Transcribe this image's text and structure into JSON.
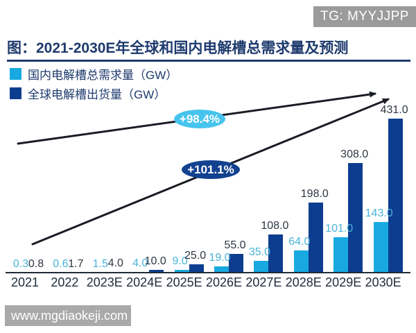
{
  "badges": {
    "tg": "TG: MYYJJPP",
    "watermark": "www.mgdiaokeji.com"
  },
  "colors": {
    "title_navy": "#1e3a6d",
    "domestic_cyan": "#18a9e0",
    "global_navy": "#0d3d8f",
    "domestic_label": "#4ab3d8",
    "global_label": "#2e3642",
    "axis_text": "#1e2a3c",
    "axis_line": "#212b38",
    "arrow": "#191c24",
    "tg_badge_bg": "#9b9b9b",
    "watermark_bg": "#a9a9a9"
  },
  "chart_data": {
    "type": "bar",
    "title": "图：2021-2030E年全球和国内电解槽总需求量及预测",
    "categories": [
      "2021",
      "2022",
      "2023E",
      "2024E",
      "2025E",
      "2026E",
      "2027E",
      "2028E",
      "2029E",
      "2030E"
    ],
    "series": [
      {
        "name": "国内电解槽总需求量（GW）",
        "color": "#18a9e0",
        "label_color": "#4ab3d8",
        "values": [
          0.3,
          0.6,
          1.5,
          4.0,
          9.0,
          19.0,
          35.0,
          64.0,
          101.0,
          143.0
        ]
      },
      {
        "name": "全球电解槽出货量（GW）",
        "color": "#0d3d8f",
        "label_color": "#2e3642",
        "values": [
          0.8,
          1.7,
          4.0,
          10.0,
          25.0,
          55.0,
          108.0,
          198.0,
          308.0,
          431.0
        ]
      }
    ],
    "annotations": [
      {
        "label": "+98.4%",
        "color": "#47c4ee",
        "text_color": "#ffffff"
      },
      {
        "label": "+101.1%",
        "color": "#12418f",
        "text_color": "#ffffff"
      }
    ],
    "ylim": [
      0,
      431
    ],
    "xlabel": "",
    "ylabel": "",
    "grid": false,
    "legend_position": "top-left",
    "value_labels_decimals": 1
  }
}
